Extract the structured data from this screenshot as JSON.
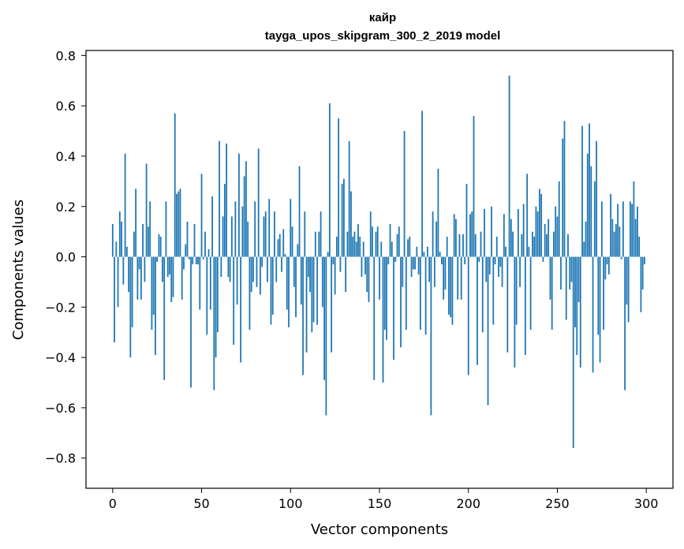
{
  "colors": {
    "bar": "#1f77b4",
    "axis": "#000000",
    "background": "#ffffff"
  },
  "chart_data": {
    "type": "bar",
    "title": "кайр",
    "subtitle": "tayga_upos_skipgram_300_2_2019 model",
    "xlabel": "Vector components",
    "ylabel": "Components values",
    "xlim": [
      -15,
      315
    ],
    "ylim": [
      -0.92,
      0.82
    ],
    "xticks": [
      0,
      50,
      100,
      150,
      200,
      250,
      300
    ],
    "xtick_labels": [
      "0",
      "50",
      "100",
      "150",
      "200",
      "250",
      "300"
    ],
    "yticks": [
      -0.8,
      -0.6,
      -0.4,
      -0.2,
      0.0,
      0.2,
      0.4,
      0.6,
      0.8
    ],
    "ytick_labels": [
      "−0.8",
      "−0.6",
      "−0.4",
      "−0.2",
      "0.0",
      "0.2",
      "0.4",
      "0.6",
      "0.8"
    ],
    "grid": false,
    "x": "indices 0..299",
    "values": [
      0.13,
      -0.34,
      0.06,
      -0.2,
      0.18,
      0.14,
      -0.11,
      0.41,
      0.04,
      -0.14,
      -0.4,
      -0.28,
      0.1,
      0.27,
      -0.17,
      -0.05,
      -0.17,
      0.13,
      -0.1,
      0.37,
      0.12,
      0.22,
      -0.29,
      -0.23,
      -0.39,
      -0.02,
      0.09,
      0.08,
      -0.1,
      -0.49,
      0.22,
      -0.08,
      -0.07,
      -0.18,
      -0.16,
      0.57,
      0.25,
      0.26,
      0.27,
      -0.17,
      -0.05,
      0.05,
      0.14,
      -0.01,
      -0.52,
      -0.03,
      0.13,
      -0.03,
      -0.03,
      -0.21,
      0.33,
      -0.01,
      0.1,
      -0.31,
      0.03,
      -0.21,
      0.24,
      -0.53,
      -0.4,
      -0.3,
      0.46,
      -0.08,
      0.16,
      0.29,
      0.45,
      -0.08,
      -0.1,
      0.16,
      -0.35,
      0.22,
      -0.19,
      0.41,
      -0.42,
      0.2,
      0.32,
      0.38,
      0.14,
      -0.29,
      -0.14,
      -0.1,
      0.22,
      -0.12,
      0.43,
      -0.15,
      -0.04,
      0.16,
      0.18,
      -0.1,
      0.23,
      -0.27,
      -0.23,
      0.18,
      -0.1,
      0.07,
      0.09,
      -0.06,
      0.11,
      0.01,
      -0.21,
      -0.28,
      0.23,
      0.12,
      -0.12,
      -0.24,
      0.05,
      0.36,
      -0.19,
      -0.47,
      0.18,
      -0.38,
      -0.08,
      -0.14,
      -0.3,
      -0.26,
      0.1,
      -0.27,
      0.1,
      0.18,
      -0.2,
      -0.49,
      -0.63,
      0.02,
      0.61,
      -0.38,
      -0.03,
      -0.15,
      0.08,
      0.55,
      -0.06,
      0.29,
      0.31,
      -0.14,
      0.1,
      0.46,
      0.26,
      0.08,
      0.1,
      0.06,
      0.13,
      0.08,
      -0.08,
      0.06,
      -0.07,
      -0.14,
      -0.18,
      0.18,
      0.12,
      -0.49,
      0.1,
      0.12,
      -0.17,
      0.06,
      -0.5,
      -0.29,
      -0.33,
      -0.03,
      0.13,
      0.06,
      -0.41,
      -0.02,
      0.09,
      0.12,
      -0.36,
      -0.12,
      0.5,
      -0.29,
      0.07,
      0.08,
      -0.08,
      -0.05,
      -0.05,
      0.04,
      -0.07,
      -0.29,
      0.58,
      0.02,
      -0.31,
      0.04,
      -0.1,
      -0.63,
      0.18,
      -0.12,
      0.14,
      0.35,
      0.02,
      -0.03,
      -0.17,
      -0.13,
      0.08,
      -0.23,
      -0.24,
      -0.27,
      0.17,
      0.15,
      -0.17,
      0.09,
      -0.17,
      0.09,
      -0.03,
      0.29,
      -0.47,
      0.17,
      0.18,
      0.56,
      0.09,
      -0.43,
      -0.02,
      0.1,
      -0.3,
      0.19,
      -0.1,
      -0.59,
      -0.07,
      0.2,
      -0.27,
      -0.03,
      0.08,
      -0.08,
      -0.04,
      -0.12,
      0.17,
      0.04,
      -0.38,
      0.72,
      0.15,
      0.1,
      -0.44,
      -0.27,
      0.19,
      -0.12,
      0.09,
      0.21,
      -0.39,
      0.33,
      0.04,
      -0.29,
      0.1,
      0.08,
      0.2,
      0.18,
      0.27,
      0.25,
      -0.02,
      0.13,
      0.09,
      0.15,
      -0.17,
      -0.29,
      0.1,
      0.2,
      0.16,
      0.3,
      -0.13,
      0.47,
      0.54,
      -0.25,
      0.09,
      -0.13,
      -0.1,
      -0.76,
      -0.28,
      -0.39,
      -0.18,
      -0.44,
      0.52,
      0.06,
      0.14,
      0.41,
      0.53,
      0.36,
      -0.46,
      0.3,
      0.46,
      -0.31,
      -0.42,
      0.22,
      -0.29,
      -0.09,
      -0.03,
      -0.07,
      0.25,
      0.15,
      0.1,
      0.13,
      0.21,
      0.12,
      -0.01,
      0.22,
      -0.53,
      -0.19,
      -0.26,
      0.22,
      0.21,
      0.3,
      0.15,
      0.2,
      0.08,
      -0.22,
      -0.13,
      -0.03
    ]
  }
}
